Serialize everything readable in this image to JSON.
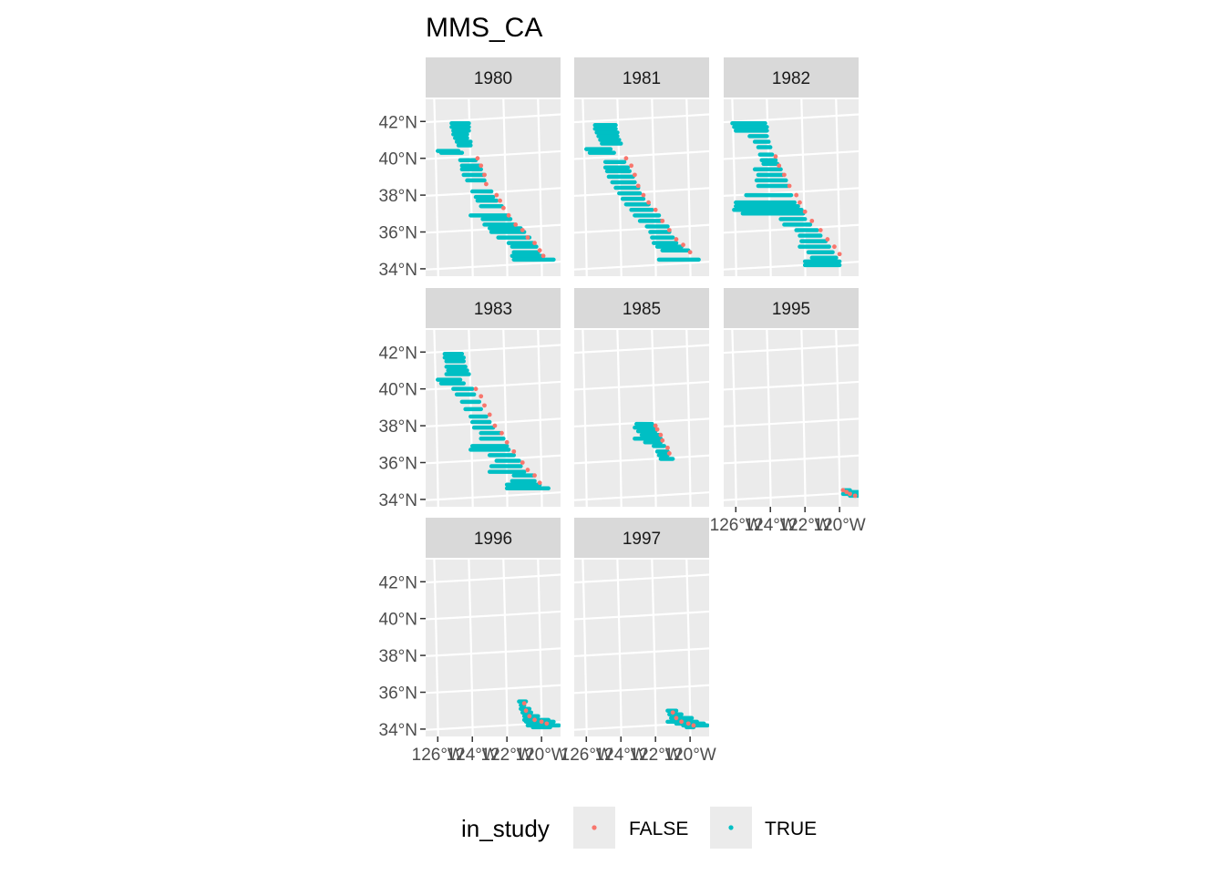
{
  "chart_data": {
    "type": "scatter",
    "title": "MMS_CA",
    "facets": [
      "1980",
      "1981",
      "1982",
      "1983",
      "1985",
      "1995",
      "1996",
      "1997"
    ],
    "y_ticks": [
      "42°N",
      "40°N",
      "38°N",
      "36°N",
      "34°N"
    ],
    "y_tick_values": [
      42,
      40,
      38,
      36,
      34
    ],
    "x_ticks": [
      "126°W",
      "124°W",
      "122°W",
      "120°W"
    ],
    "x_tick_values": [
      -126,
      -124,
      -122,
      -120
    ],
    "x_range": [
      -126.7,
      -118.9
    ],
    "y_range": [
      33.6,
      43.2
    ],
    "legend": {
      "title": "in_study",
      "entries": [
        {
          "label": "FALSE",
          "color": "#F8766D"
        },
        {
          "label": "TRUE",
          "color": "#00BFC4"
        }
      ]
    },
    "colors": {
      "false": "#F8766D",
      "true": "#00BFC4",
      "panel": "#EBEBEB",
      "strip": "#D9D9D9",
      "grid": "#FFFFFF"
    },
    "tracks": {
      "1980": [
        [
          -126.0,
          40.4,
          -124.8
        ],
        [
          -125.8,
          40.3,
          -124.6
        ],
        [
          -125.2,
          41.9,
          -124.2
        ],
        [
          -125.2,
          41.7,
          -124.2
        ],
        [
          -125.1,
          41.5,
          -124.2
        ],
        [
          -125.1,
          41.3,
          -124.3
        ],
        [
          -125.0,
          41.1,
          -124.3
        ],
        [
          -124.9,
          40.9,
          -124.1
        ],
        [
          -124.8,
          40.7,
          -124.1
        ],
        [
          -124.7,
          39.9,
          -123.8
        ],
        [
          -124.6,
          39.6,
          -123.6
        ],
        [
          -124.6,
          39.4,
          -123.5
        ],
        [
          -124.5,
          39.1,
          -123.3
        ],
        [
          -124.3,
          38.8,
          -123.3
        ],
        [
          -124.0,
          38.2,
          -122.9
        ],
        [
          -123.8,
          37.9,
          -122.8
        ],
        [
          -123.7,
          37.7,
          -122.6
        ],
        [
          -123.5,
          37.4,
          -122.3
        ],
        [
          -124.1,
          36.9,
          -122.0
        ],
        [
          -123.4,
          36.7,
          -121.8
        ],
        [
          -123.3,
          36.4,
          -121.6
        ],
        [
          -123.0,
          36.2,
          -121.2
        ],
        [
          -122.9,
          36.0,
          -121.0
        ],
        [
          -122.5,
          35.7,
          -120.7
        ],
        [
          -121.9,
          35.4,
          -120.5
        ],
        [
          -121.7,
          35.2,
          -120.3
        ],
        [
          -121.6,
          34.9,
          -120.2
        ],
        [
          -121.7,
          34.7,
          -119.9
        ],
        [
          -121.6,
          34.5,
          -119.3
        ]
      ],
      "1981": [
        [
          -126.0,
          40.5,
          -124.6
        ],
        [
          -125.8,
          40.3,
          -124.4
        ],
        [
          -125.5,
          41.8,
          -124.3
        ],
        [
          -125.5,
          41.6,
          -124.3
        ],
        [
          -125.4,
          41.4,
          -124.2
        ],
        [
          -125.3,
          41.2,
          -124.2
        ],
        [
          -125.2,
          41.0,
          -124.1
        ],
        [
          -125.1,
          40.8,
          -124.0
        ],
        [
          -124.9,
          39.8,
          -123.8
        ],
        [
          -124.9,
          39.5,
          -123.6
        ],
        [
          -124.8,
          39.3,
          -123.5
        ],
        [
          -124.7,
          39.0,
          -123.3
        ],
        [
          -124.5,
          38.7,
          -123.2
        ],
        [
          -124.3,
          38.4,
          -123.0
        ],
        [
          -124.1,
          38.1,
          -122.9
        ],
        [
          -123.9,
          37.8,
          -122.7
        ],
        [
          -123.7,
          37.5,
          -122.4
        ],
        [
          -123.4,
          37.2,
          -122.2
        ],
        [
          -123.2,
          36.9,
          -121.8
        ],
        [
          -122.9,
          36.6,
          -121.6
        ],
        [
          -122.5,
          36.3,
          -121.3
        ],
        [
          -122.3,
          36.0,
          -121.2
        ],
        [
          -122.2,
          35.7,
          -121.0
        ],
        [
          -122.1,
          35.4,
          -120.8
        ],
        [
          -121.9,
          35.2,
          -120.5
        ],
        [
          -121.6,
          35.0,
          -120.1
        ],
        [
          -121.8,
          34.5,
          -119.5
        ]
      ],
      "1982": [
        [
          -126.2,
          41.9,
          -124.3
        ],
        [
          -126.1,
          41.7,
          -124.2
        ],
        [
          -126.0,
          41.5,
          -124.2
        ],
        [
          -125.2,
          41.2,
          -124.2
        ],
        [
          -124.9,
          40.9,
          -124.1
        ],
        [
          -124.7,
          40.6,
          -124.0
        ],
        [
          -124.6,
          40.2,
          -123.9
        ],
        [
          -124.5,
          39.9,
          -123.7
        ],
        [
          -124.4,
          39.7,
          -123.6
        ],
        [
          -124.9,
          39.4,
          -123.4
        ],
        [
          -124.7,
          39.1,
          -123.3
        ],
        [
          -124.8,
          38.8,
          -123.1
        ],
        [
          -124.7,
          38.5,
          -123.0
        ],
        [
          -125.4,
          38.0,
          -122.8
        ],
        [
          -126.0,
          37.6,
          -122.6
        ],
        [
          -126.0,
          37.4,
          -122.4
        ],
        [
          -126.1,
          37.2,
          -122.2
        ],
        [
          -125.6,
          37.0,
          -122.1
        ],
        [
          -123.4,
          36.7,
          -122.0
        ],
        [
          -123.2,
          36.4,
          -121.7
        ],
        [
          -122.5,
          36.1,
          -121.3
        ],
        [
          -122.3,
          35.8,
          -121.1
        ],
        [
          -122.2,
          35.5,
          -120.8
        ],
        [
          -122.3,
          35.2,
          -120.6
        ],
        [
          -121.8,
          34.9,
          -120.4
        ],
        [
          -121.6,
          34.6,
          -120.2
        ],
        [
          -122.0,
          34.4,
          -120.0
        ],
        [
          -122.0,
          34.2,
          -120.0
        ]
      ],
      "1983": [
        [
          -125.6,
          41.9,
          -124.6
        ],
        [
          -125.6,
          41.7,
          -124.5
        ],
        [
          -125.5,
          41.5,
          -124.5
        ],
        [
          -125.5,
          41.2,
          -124.4
        ],
        [
          -125.4,
          41.0,
          -124.3
        ],
        [
          -125.5,
          40.8,
          -124.2
        ],
        [
          -126.0,
          40.5,
          -124.7
        ],
        [
          -125.8,
          40.3,
          -124.5
        ],
        [
          -125.1,
          40.0,
          -124.0
        ],
        [
          -124.9,
          39.7,
          -123.9
        ],
        [
          -124.6,
          39.3,
          -123.6
        ],
        [
          -124.4,
          38.9,
          -123.5
        ],
        [
          -124.1,
          38.5,
          -123.2
        ],
        [
          -124.0,
          38.2,
          -123.0
        ],
        [
          -123.9,
          37.9,
          -122.8
        ],
        [
          -123.5,
          37.6,
          -122.4
        ],
        [
          -123.5,
          37.3,
          -122.2
        ],
        [
          -124.0,
          36.9,
          -122.0
        ],
        [
          -124.1,
          36.7,
          -121.9
        ],
        [
          -123.0,
          36.4,
          -121.6
        ],
        [
          -122.6,
          36.1,
          -121.3
        ],
        [
          -122.9,
          35.8,
          -121.2
        ],
        [
          -123.0,
          35.5,
          -121.0
        ],
        [
          -121.6,
          35.3,
          -120.5
        ],
        [
          -121.7,
          35.0,
          -120.4
        ],
        [
          -122.0,
          34.8,
          -120.1
        ],
        [
          -122.0,
          34.6,
          -119.6
        ]
      ],
      "1985": [
        [
          -123.1,
          38.1,
          -122.2
        ],
        [
          -123.2,
          37.9,
          -122.1
        ],
        [
          -123.0,
          37.7,
          -122.0
        ],
        [
          -122.8,
          37.5,
          -121.8
        ],
        [
          -123.2,
          37.3,
          -121.7
        ],
        [
          -122.6,
          37.1,
          -121.7
        ],
        [
          -122.1,
          36.9,
          -121.5
        ],
        [
          -121.9,
          36.6,
          -121.3
        ],
        [
          -121.8,
          36.4,
          -121.3
        ],
        [
          -121.7,
          36.2,
          -121.0
        ]
      ],
      "1995": [
        [
          -119.8,
          34.5,
          -119.4
        ],
        [
          -119.7,
          34.4,
          -118.9
        ],
        [
          -119.8,
          34.3,
          -118.8
        ],
        [
          -119.4,
          34.2,
          -118.9
        ]
      ],
      "1996": [
        [
          -121.3,
          35.5,
          -120.9
        ],
        [
          -121.2,
          35.3,
          -121.0
        ],
        [
          -121.2,
          35.1,
          -120.7
        ],
        [
          -121.1,
          34.9,
          -120.6
        ],
        [
          -121.0,
          34.7,
          -120.2
        ],
        [
          -121.0,
          34.5,
          -119.6
        ],
        [
          -120.9,
          34.4,
          -119.3
        ],
        [
          -120.8,
          34.2,
          -119.0
        ],
        [
          -120.5,
          34.1,
          -119.5
        ]
      ],
      "1997": [
        [
          -121.3,
          35.0,
          -120.8
        ],
        [
          -121.2,
          34.8,
          -120.5
        ],
        [
          -121.1,
          34.6,
          -119.9
        ],
        [
          -121.3,
          34.4,
          -119.6
        ],
        [
          -120.8,
          34.3,
          -119.2
        ],
        [
          -120.4,
          34.2,
          -119.0
        ],
        [
          -120.2,
          34.1,
          -119.8
        ]
      ]
    },
    "false_points": {
      "1980": [
        [
          -123.7,
          40.0
        ],
        [
          -123.5,
          39.6
        ],
        [
          -123.3,
          39.1
        ],
        [
          -123.2,
          38.6
        ],
        [
          -122.6,
          38.0
        ],
        [
          -122.4,
          37.7
        ],
        [
          -122.2,
          37.3
        ],
        [
          -121.9,
          36.9
        ],
        [
          -121.5,
          36.4
        ],
        [
          -121.1,
          36.1
        ],
        [
          -120.8,
          35.7
        ],
        [
          -120.4,
          35.4
        ],
        [
          -120.1,
          35.0
        ],
        [
          -119.9,
          34.7
        ]
      ],
      "1981": [
        [
          -123.7,
          40.0
        ],
        [
          -123.4,
          39.6
        ],
        [
          -123.2,
          39.1
        ],
        [
          -123.0,
          38.5
        ],
        [
          -122.7,
          38.0
        ],
        [
          -122.4,
          37.6
        ],
        [
          -122.0,
          37.2
        ],
        [
          -121.6,
          36.6
        ],
        [
          -121.2,
          36.1
        ],
        [
          -120.8,
          35.6
        ],
        [
          -120.4,
          35.3
        ],
        [
          -120.0,
          34.9
        ]
      ],
      "1982": [
        [
          -123.7,
          40.1
        ],
        [
          -123.5,
          39.6
        ],
        [
          -123.2,
          39.1
        ],
        [
          -122.9,
          38.5
        ],
        [
          -122.5,
          38.0
        ],
        [
          -122.3,
          37.6
        ],
        [
          -122.0,
          37.1
        ],
        [
          -121.6,
          36.6
        ],
        [
          -121.1,
          36.1
        ],
        [
          -120.7,
          35.6
        ],
        [
          -120.3,
          35.2
        ],
        [
          -120.0,
          34.8
        ]
      ],
      "1983": [
        [
          -123.8,
          40.0
        ],
        [
          -123.5,
          39.6
        ],
        [
          -123.3,
          39.1
        ],
        [
          -123.0,
          38.6
        ],
        [
          -122.7,
          38.0
        ],
        [
          -122.3,
          37.6
        ],
        [
          -122.0,
          37.1
        ],
        [
          -121.6,
          36.6
        ],
        [
          -121.1,
          36.0
        ],
        [
          -120.8,
          35.6
        ],
        [
          -120.4,
          35.3
        ],
        [
          -120.1,
          34.9
        ]
      ],
      "1985": [
        [
          -122.0,
          38.0
        ],
        [
          -121.9,
          37.8
        ],
        [
          -121.7,
          37.5
        ],
        [
          -121.6,
          37.2
        ],
        [
          -121.3,
          36.8
        ],
        [
          -121.2,
          36.5
        ]
      ],
      "1995": [
        [
          -119.8,
          34.5
        ],
        [
          -119.6,
          34.4
        ],
        [
          -119.4,
          34.3
        ],
        [
          -119.1,
          34.2
        ]
      ],
      "1996": [
        [
          -121.0,
          35.4
        ],
        [
          -120.9,
          35.0
        ],
        [
          -120.7,
          34.7
        ],
        [
          -120.4,
          34.5
        ],
        [
          -120.0,
          34.4
        ],
        [
          -119.7,
          34.3
        ]
      ],
      "1997": [
        [
          -121.0,
          34.9
        ],
        [
          -120.8,
          34.6
        ],
        [
          -120.5,
          34.4
        ],
        [
          -120.1,
          34.3
        ],
        [
          -119.8,
          34.2
        ]
      ]
    }
  }
}
